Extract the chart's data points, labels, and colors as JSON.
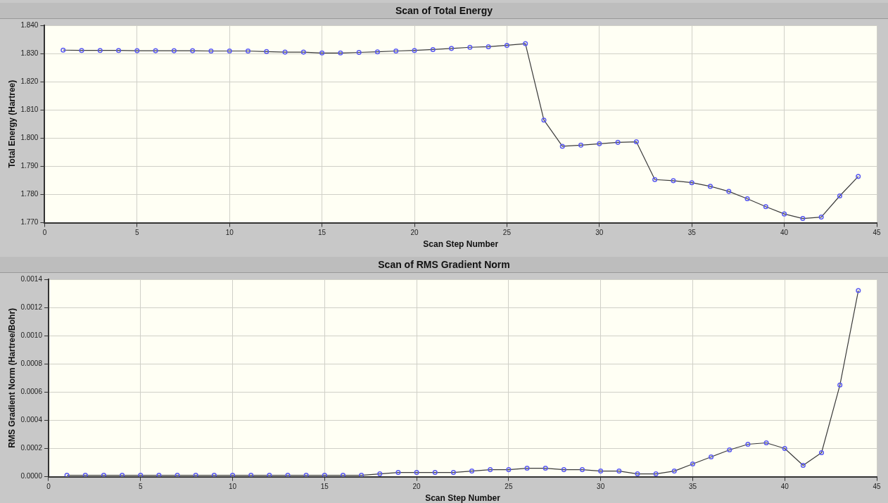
{
  "chart_data": [
    {
      "type": "line",
      "title": "Scan of Total Energy",
      "xlabel": "Scan Step Number",
      "ylabel": "Total Energy (Hartree)",
      "grid": true,
      "marker": "circle",
      "line_style": "solid",
      "x": [
        1,
        2,
        3,
        4,
        5,
        6,
        7,
        8,
        9,
        10,
        11,
        12,
        13,
        14,
        15,
        16,
        17,
        18,
        19,
        20,
        21,
        22,
        23,
        24,
        25,
        26,
        27,
        28,
        29,
        30,
        31,
        32,
        33,
        34,
        35,
        36,
        37,
        38,
        39,
        40,
        41,
        42,
        43,
        44
      ],
      "series": [
        {
          "color": "#5a5af0",
          "values": [
            1.8312,
            1.8311,
            1.8311,
            1.8311,
            1.831,
            1.831,
            1.831,
            1.831,
            1.8309,
            1.8309,
            1.8309,
            1.8307,
            1.8305,
            1.8305,
            1.8302,
            1.8302,
            1.8304,
            1.8306,
            1.8309,
            1.8311,
            1.8314,
            1.8318,
            1.8322,
            1.8324,
            1.8329,
            1.8335,
            1.8064,
            1.7971,
            1.7975,
            1.798,
            1.7985,
            1.7987,
            1.7853,
            1.7849,
            1.7842,
            1.7829,
            1.7811,
            1.7785,
            1.7757,
            1.7731,
            1.7715,
            1.772,
            1.7795,
            1.7864
          ]
        }
      ],
      "xlim": [
        0,
        45
      ],
      "xticks": [
        0,
        5,
        10,
        15,
        20,
        25,
        30,
        35,
        40,
        45
      ],
      "ylim": [
        1.77,
        1.84
      ],
      "yticks": [
        {
          "value": 1.77,
          "label": "1.770"
        },
        {
          "value": 1.78,
          "label": "1.780"
        },
        {
          "value": 1.79,
          "label": "1.790"
        },
        {
          "value": 1.8,
          "label": "1.800"
        },
        {
          "value": 1.81,
          "label": "1.810"
        },
        {
          "value": 1.82,
          "label": "1.820"
        },
        {
          "value": 1.83,
          "label": "1.830"
        },
        {
          "value": 1.84,
          "label": "1.840"
        }
      ]
    },
    {
      "type": "line",
      "title": "Scan of RMS Gradient Norm",
      "xlabel": "Scan Step Number",
      "ylabel": "RMS Gradient Norm (Hartree/Bohr)",
      "grid": true,
      "marker": "circle",
      "line_style": "solid",
      "x": [
        1,
        2,
        3,
        4,
        5,
        6,
        7,
        8,
        9,
        10,
        11,
        12,
        13,
        14,
        15,
        16,
        17,
        18,
        19,
        20,
        21,
        22,
        23,
        24,
        25,
        26,
        27,
        28,
        29,
        30,
        31,
        32,
        33,
        34,
        35,
        36,
        37,
        38,
        39,
        40,
        41,
        42,
        43,
        44
      ],
      "series": [
        {
          "color": "#5a5af0",
          "values": [
            1e-05,
            1e-05,
            1e-05,
            1e-05,
            1e-05,
            1e-05,
            1e-05,
            1e-05,
            1e-05,
            1e-05,
            1e-05,
            1e-05,
            1e-05,
            1e-05,
            1e-05,
            1e-05,
            1e-05,
            2e-05,
            3e-05,
            3e-05,
            3e-05,
            3e-05,
            4e-05,
            5e-05,
            5e-05,
            6e-05,
            6e-05,
            5e-05,
            5e-05,
            4e-05,
            4e-05,
            2e-05,
            2e-05,
            4e-05,
            9e-05,
            0.00014,
            0.00019,
            0.00023,
            0.00024,
            0.0002,
            8e-05,
            0.00017,
            0.00065,
            0.00132
          ]
        }
      ],
      "xlim": [
        0,
        45
      ],
      "xticks": [
        0,
        5,
        10,
        15,
        20,
        25,
        30,
        35,
        40,
        45
      ],
      "ylim": [
        0,
        0.0014
      ],
      "yticks": [
        {
          "value": 0,
          "label": "0.0000"
        },
        {
          "value": 0.0002,
          "label": "0.0002"
        },
        {
          "value": 0.0004,
          "label": "0.0004"
        },
        {
          "value": 0.0006,
          "label": "0.0006"
        },
        {
          "value": 0.0008,
          "label": "0.0008"
        },
        {
          "value": 0.001,
          "label": "0.0010"
        },
        {
          "value": 0.0012,
          "label": "0.0012"
        },
        {
          "value": 0.0014,
          "label": "0.0014"
        }
      ]
    }
  ]
}
